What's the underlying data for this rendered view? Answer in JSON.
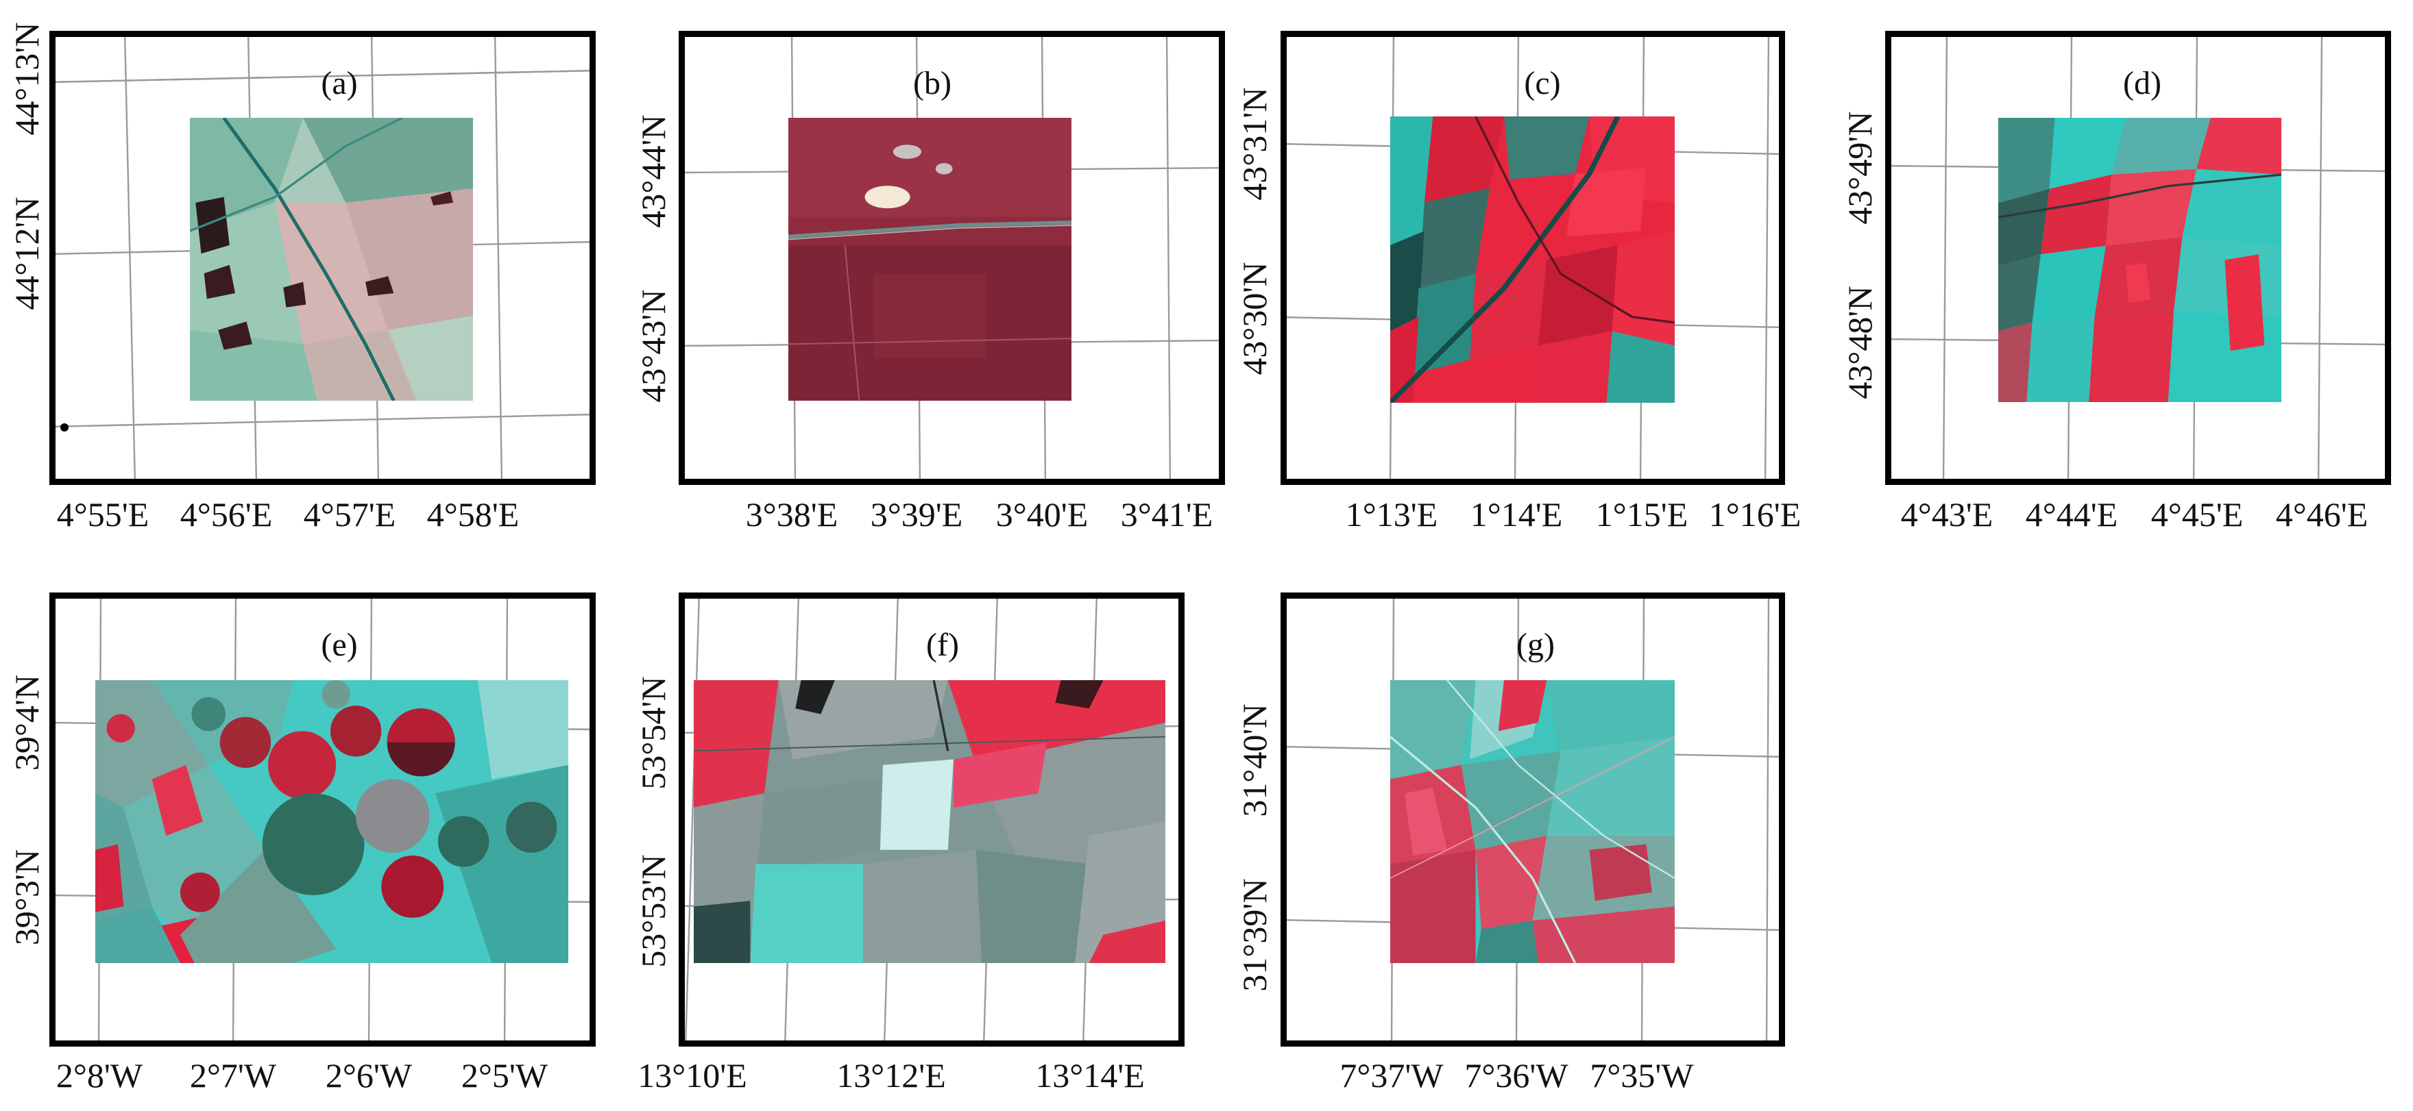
{
  "colors": {
    "cyan": "#2fd6cf",
    "red": "#e62a45",
    "maroon": "#8a2537",
    "grey": "#8c9a98",
    "dark": "#1a1a1a",
    "pale": "#c9e3dc"
  },
  "panels": [
    {
      "id": "a",
      "label": "(a)",
      "xticks": [
        "4°55'E",
        "4°56'E",
        "4°57'E",
        "4°58'E"
      ],
      "yticks": [
        "44°13'N",
        "44°12'N"
      ]
    },
    {
      "id": "b",
      "label": "(b)",
      "xticks": [
        "3°38'E",
        "3°39'E",
        "3°40'E",
        "3°41'E"
      ],
      "yticks": [
        "43°44'N",
        "43°43'N"
      ]
    },
    {
      "id": "c",
      "label": "(c)",
      "xticks": [
        "1°13'E",
        "1°14'E",
        "1°15'E",
        "1°16'E"
      ],
      "yticks": [
        "43°31'N",
        "43°30'N"
      ]
    },
    {
      "id": "d",
      "label": "(d)",
      "xticks": [
        "4°43'E",
        "4°44'E",
        "4°45'E",
        "4°46'E"
      ],
      "yticks": [
        "43°49'N",
        "43°48'N"
      ]
    },
    {
      "id": "e",
      "label": "(e)",
      "xticks": [
        "2°8'W",
        "2°7'W",
        "2°6'W",
        "2°5'W"
      ],
      "yticks": [
        "39°4'N",
        "39°3'N"
      ]
    },
    {
      "id": "f",
      "label": "(f)",
      "xticks": [
        "13°10'E",
        "13°12'E",
        "13°14'E"
      ],
      "yticks": [
        "53°54'N",
        "53°53'N"
      ]
    },
    {
      "id": "g",
      "label": "(g)",
      "xticks": [
        "7°37'W",
        "7°36'W",
        "7°35'W"
      ],
      "yticks": [
        "31°40'N",
        "31°39'N"
      ]
    }
  ]
}
